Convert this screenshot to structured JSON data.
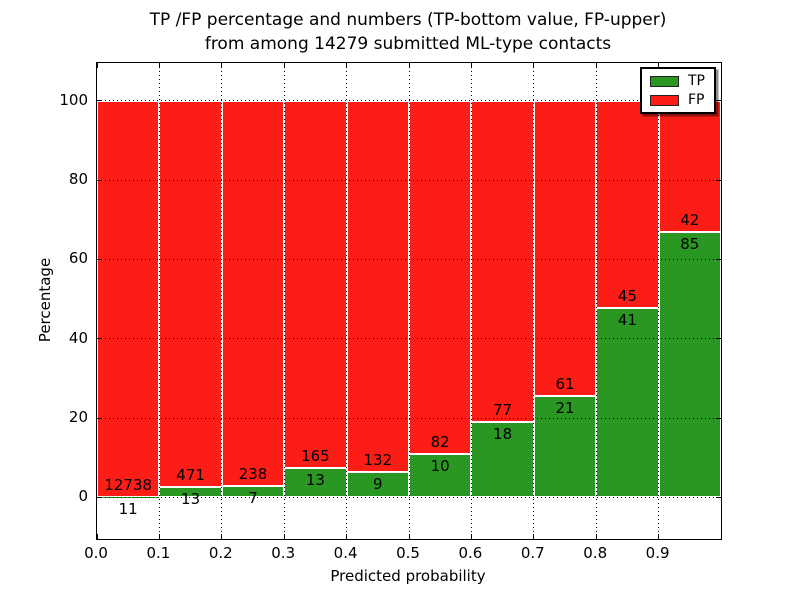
{
  "title": {
    "line1": "TP /FP percentage and numbers (TP-bottom value, FP-upper)",
    "line2": "from among 14279 submitted ML-type contacts"
  },
  "axes": {
    "x_label": "Predicted probability",
    "y_label": "Percentage",
    "x_tick_labels": [
      "0.0",
      "0.1",
      "0.2",
      "0.3",
      "0.4",
      "0.5",
      "0.6",
      "0.7",
      "0.8",
      "0.9"
    ],
    "x_tick_values": [
      0.0,
      0.1,
      0.2,
      0.3,
      0.4,
      0.5,
      0.6,
      0.7,
      0.8,
      0.9
    ],
    "y_tick_labels": [
      "0",
      "20",
      "40",
      "60",
      "80",
      "100"
    ],
    "y_tick_values": [
      0,
      20,
      40,
      60,
      80,
      100
    ]
  },
  "legend": {
    "position": "upper right",
    "entries": [
      {
        "label": "TP",
        "color": "#2a9722"
      },
      {
        "label": "FP",
        "color": "#fc1d16"
      }
    ]
  },
  "colors": {
    "tp_green": "#2a9722",
    "fp_red": "#fc1d16",
    "grid": "#000000",
    "background": "#ffffff"
  },
  "chart_data": {
    "type": "bar",
    "stacked": true,
    "normalized": "each bar stacked to 100%",
    "title": "TP /FP percentage and numbers (TP-bottom value, FP-upper) from among 14279 submitted ML-type contacts",
    "xlabel": "Predicted probability",
    "ylabel": "Percentage",
    "grid": "dotted",
    "legend_position": "upper right",
    "xlim": [
      0.0,
      1.0
    ],
    "ylim": [
      -10.5,
      109.5
    ],
    "bin_edges": [
      0.0,
      0.1,
      0.2,
      0.3,
      0.4,
      0.5,
      0.6,
      0.7,
      0.8,
      0.9,
      1.0
    ],
    "series": [
      {
        "name": "TP",
        "color": "#2a9722",
        "counts": [
          11,
          13,
          7,
          13,
          9,
          10,
          18,
          21,
          41,
          85
        ]
      },
      {
        "name": "FP",
        "color": "#fc1d16",
        "counts": [
          12738,
          471,
          238,
          165,
          132,
          82,
          77,
          61,
          45,
          42
        ]
      }
    ],
    "tp_percent_per_bin": [
      0.09,
      2.69,
      2.86,
      7.3,
      6.38,
      10.87,
      18.95,
      25.61,
      47.67,
      66.93
    ],
    "total_submitted": 14279
  }
}
